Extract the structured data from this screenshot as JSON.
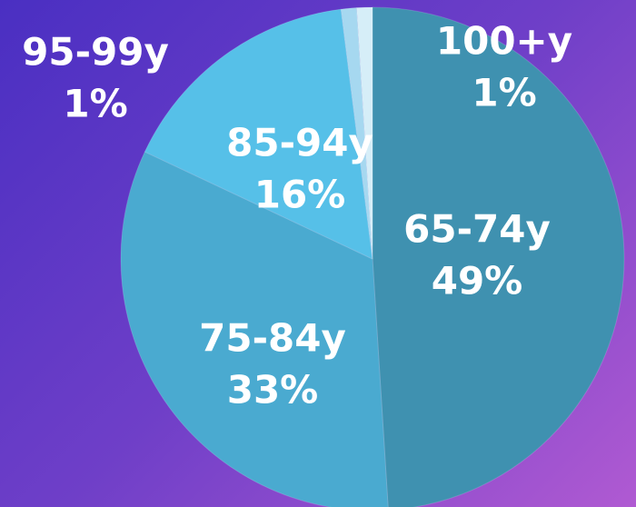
{
  "chart_data": {
    "type": "pie",
    "categories": [
      "65-74y",
      "75-84y",
      "85-94y",
      "95-99y",
      "100+y"
    ],
    "values": [
      49,
      33,
      16,
      1,
      1
    ],
    "value_labels": [
      "49%",
      "33%",
      "16%",
      "1%",
      "1%"
    ],
    "colors": [
      "#3f91b0",
      "#4aaad0",
      "#56c0e8",
      "#a6d8f0",
      "#d6eef8"
    ]
  }
}
